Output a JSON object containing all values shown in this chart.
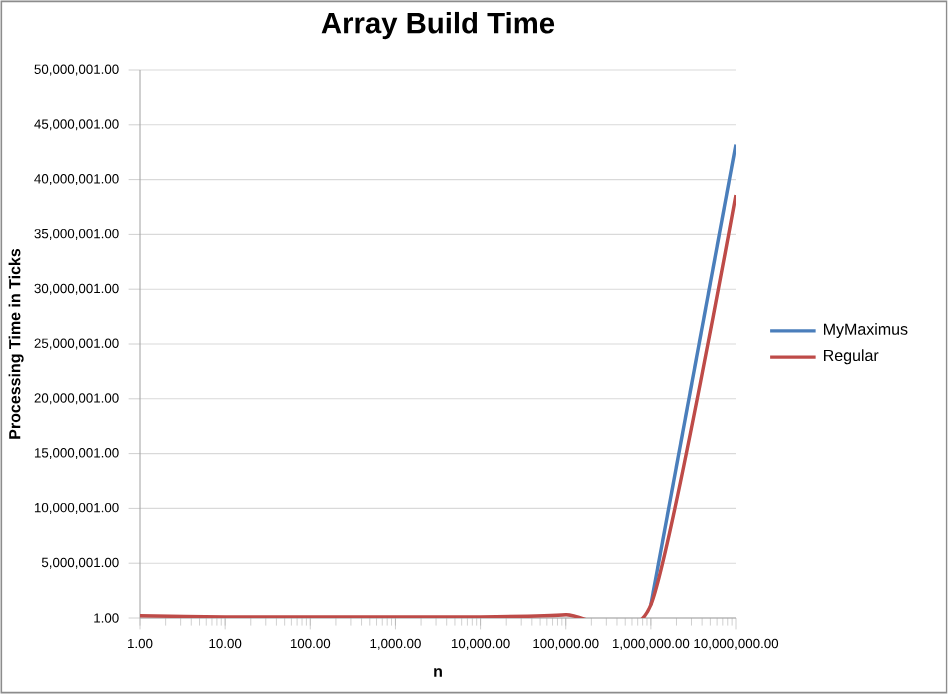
{
  "chart_data": {
    "type": "line",
    "title": "Array Build Time",
    "xlabel": "n",
    "ylabel": "Processing Time in Ticks",
    "x": [
      1,
      10,
      100,
      1000,
      10000,
      100000,
      1000000,
      10000000
    ],
    "series": [
      {
        "name": "MyMaximus",
        "color": "#4a7ebb",
        "values": [
          null,
          null,
          null,
          null,
          null,
          null,
          1200000,
          43200000
        ]
      },
      {
        "name": "Regular",
        "color": "#be4b48",
        "values": [
          200000,
          100000,
          100000,
          100000,
          100000,
          300000,
          1200000,
          38600000
        ]
      }
    ],
    "log": "x",
    "xlim": [
      1,
      10000000
    ],
    "ylim": [
      1,
      50000001
    ],
    "xticks": [
      {
        "value": 1,
        "label": "1.00"
      },
      {
        "value": 10,
        "label": "10.00"
      },
      {
        "value": 100,
        "label": "100.00"
      },
      {
        "value": 1000,
        "label": "1,000.00"
      },
      {
        "value": 10000,
        "label": "10,000.00"
      },
      {
        "value": 100000,
        "label": "100,000.00"
      },
      {
        "value": 1000000,
        "label": "1,000,000.00"
      },
      {
        "value": 10000000,
        "label": "10,000,000.00"
      }
    ],
    "yticks": [
      {
        "value": 1,
        "label": "1.00"
      },
      {
        "value": 5000001,
        "label": "5,000,001.00"
      },
      {
        "value": 10000001,
        "label": "10,000,001.00"
      },
      {
        "value": 15000001,
        "label": "15,000,001.00"
      },
      {
        "value": 20000001,
        "label": "20,000,001.00"
      },
      {
        "value": 25000001,
        "label": "25,000,001.00"
      },
      {
        "value": 30000001,
        "label": "30,000,001.00"
      },
      {
        "value": 35000001,
        "label": "35,000,001.00"
      },
      {
        "value": 40000001,
        "label": "40,000,001.00"
      },
      {
        "value": 45000001,
        "label": "45,000,001.00"
      },
      {
        "value": 50000001,
        "label": "50,000,001.00"
      }
    ],
    "grid": "y",
    "legend": "right",
    "line_style": "solid"
  }
}
